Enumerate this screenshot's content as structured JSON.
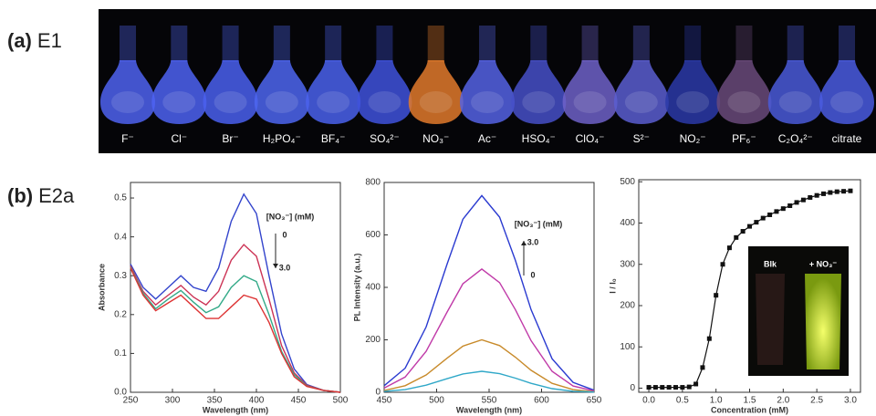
{
  "panel_a": {
    "label": "(a)",
    "title": "E1",
    "ions": [
      {
        "label": "F⁻",
        "color": "#4f63f0"
      },
      {
        "label": "Cl⁻",
        "color": "#4d63f2"
      },
      {
        "label": "Br⁻",
        "color": "#4a60ee"
      },
      {
        "label": "H₂PO₄⁻",
        "color": "#4e66f0"
      },
      {
        "label": "BF₄⁻",
        "color": "#4a62ec"
      },
      {
        "label": "SO₄²⁻",
        "color": "#3f52dc"
      },
      {
        "label": "NO₃⁻",
        "color": "#e27a2c"
      },
      {
        "label": "Ac⁻",
        "color": "#5563e4"
      },
      {
        "label": "HSO₄⁻",
        "color": "#4650c8"
      },
      {
        "label": "ClO₄⁻",
        "color": "#6e62c8"
      },
      {
        "label": "S²⁻",
        "color": "#5a5ed0"
      },
      {
        "label": "NO₂⁻",
        "color": "#2c3aa8"
      },
      {
        "label": "PF₆⁻",
        "color": "#6a4a7a"
      },
      {
        "label": "C₂O₄²⁻",
        "color": "#4a5ad8"
      },
      {
        "label": "citrate",
        "color": "#4a5ce0"
      }
    ]
  },
  "panel_b": {
    "label": "(b)",
    "title": "E2a"
  },
  "chart_data": [
    {
      "type": "line",
      "x_label": "Wavelength (nm)",
      "y_label": "Absorbance",
      "x": [
        250,
        265,
        280,
        295,
        310,
        325,
        340,
        355,
        370,
        385,
        400,
        415,
        430,
        445,
        460,
        480,
        500
      ],
      "series": [
        {
          "color": "#3344cc",
          "values": [
            0.33,
            0.27,
            0.24,
            0.27,
            0.3,
            0.27,
            0.26,
            0.32,
            0.44,
            0.51,
            0.46,
            0.3,
            0.15,
            0.06,
            0.02,
            0.005,
            0
          ]
        },
        {
          "color": "#cc3355",
          "values": [
            0.325,
            0.26,
            0.225,
            0.25,
            0.275,
            0.245,
            0.225,
            0.26,
            0.34,
            0.38,
            0.35,
            0.24,
            0.12,
            0.05,
            0.018,
            0.005,
            0
          ]
        },
        {
          "color": "#33aa88",
          "values": [
            0.322,
            0.255,
            0.215,
            0.24,
            0.262,
            0.232,
            0.205,
            0.22,
            0.27,
            0.3,
            0.285,
            0.2,
            0.105,
            0.045,
            0.016,
            0.005,
            0
          ]
        },
        {
          "color": "#dd3333",
          "values": [
            0.32,
            0.25,
            0.21,
            0.23,
            0.25,
            0.22,
            0.19,
            0.19,
            0.22,
            0.25,
            0.24,
            0.18,
            0.1,
            0.04,
            0.015,
            0.005,
            0
          ]
        }
      ],
      "xlim": [
        250,
        500
      ],
      "ylim": [
        0,
        0.54
      ],
      "xticks": [
        250,
        300,
        350,
        400,
        450,
        500
      ],
      "yticks": [
        {
          "value": 0,
          "label": "0.0"
        },
        0.1,
        0.2,
        0.3,
        0.4,
        0.5
      ],
      "annotation": {
        "text": "[NO₃⁻] (mM)",
        "start": "0",
        "end": "3.0"
      }
    },
    {
      "type": "line",
      "x_label": "Wavelength (nm)",
      "y_label": "PL Intensity (a.u.)",
      "x": [
        450,
        470,
        490,
        510,
        525,
        543,
        560,
        575,
        590,
        610,
        630,
        650
      ],
      "series": [
        {
          "color": "#2a3ad0",
          "values": [
            25,
            92,
            249,
            489,
            660,
            750,
            668,
            503,
            315,
            128,
            38,
            8
          ]
        },
        {
          "color": "#c03aa8",
          "values": [
            16,
            58,
            156,
            306,
            414,
            470,
            418,
            315,
            197,
            80,
            24,
            5
          ]
        },
        {
          "color": "#c88a2a",
          "values": [
            7,
            25,
            66,
            130,
            176,
            200,
            178,
            134,
            84,
            34,
            10,
            2
          ]
        },
        {
          "color": "#30a8c8",
          "values": [
            3,
            10,
            27,
            52,
            70,
            80,
            71,
            54,
            34,
            14,
            4,
            1
          ]
        }
      ],
      "xlim": [
        450,
        650
      ],
      "ylim": [
        0,
        800
      ],
      "xticks": [
        450,
        500,
        550,
        600,
        650
      ],
      "yticks": [
        0,
        200,
        400,
        600,
        800
      ],
      "annotation": {
        "text": "[NO₃⁻] (mM)",
        "start": "3.0",
        "end": "0"
      }
    },
    {
      "type": "line",
      "markers": true,
      "x_label": "Concentration (mM)",
      "y_label": "I / I₀",
      "x": [
        0,
        0.1,
        0.2,
        0.3,
        0.4,
        0.5,
        0.6,
        0.7,
        0.8,
        0.9,
        1.0,
        1.1,
        1.2,
        1.3,
        1.4,
        1.5,
        1.6,
        1.7,
        1.8,
        1.9,
        2.0,
        2.1,
        2.2,
        2.3,
        2.4,
        2.5,
        2.6,
        2.7,
        2.8,
        2.9,
        3.0
      ],
      "series": [
        {
          "color": "#111111",
          "values": [
            2,
            2,
            2,
            2,
            2,
            2,
            3,
            10,
            50,
            120,
            225,
            300,
            340,
            365,
            380,
            392,
            402,
            412,
            420,
            428,
            435,
            442,
            450,
            456,
            462,
            467,
            471,
            474,
            476,
            477,
            478
          ]
        }
      ],
      "xlim": [
        -0.15,
        3.15
      ],
      "ylim": [
        -10,
        505
      ],
      "xticks": [
        {
          "value": 0,
          "label": "0.0"
        },
        0.5,
        {
          "value": 1,
          "label": "1.0"
        },
        1.5,
        {
          "value": 2,
          "label": "2.0"
        },
        2.5,
        {
          "value": 3,
          "label": "3.0"
        }
      ],
      "yticks": [
        0,
        100,
        200,
        300,
        400,
        500
      ],
      "inset": {
        "left": "Blk",
        "right": "+ NO₃⁻"
      }
    }
  ]
}
